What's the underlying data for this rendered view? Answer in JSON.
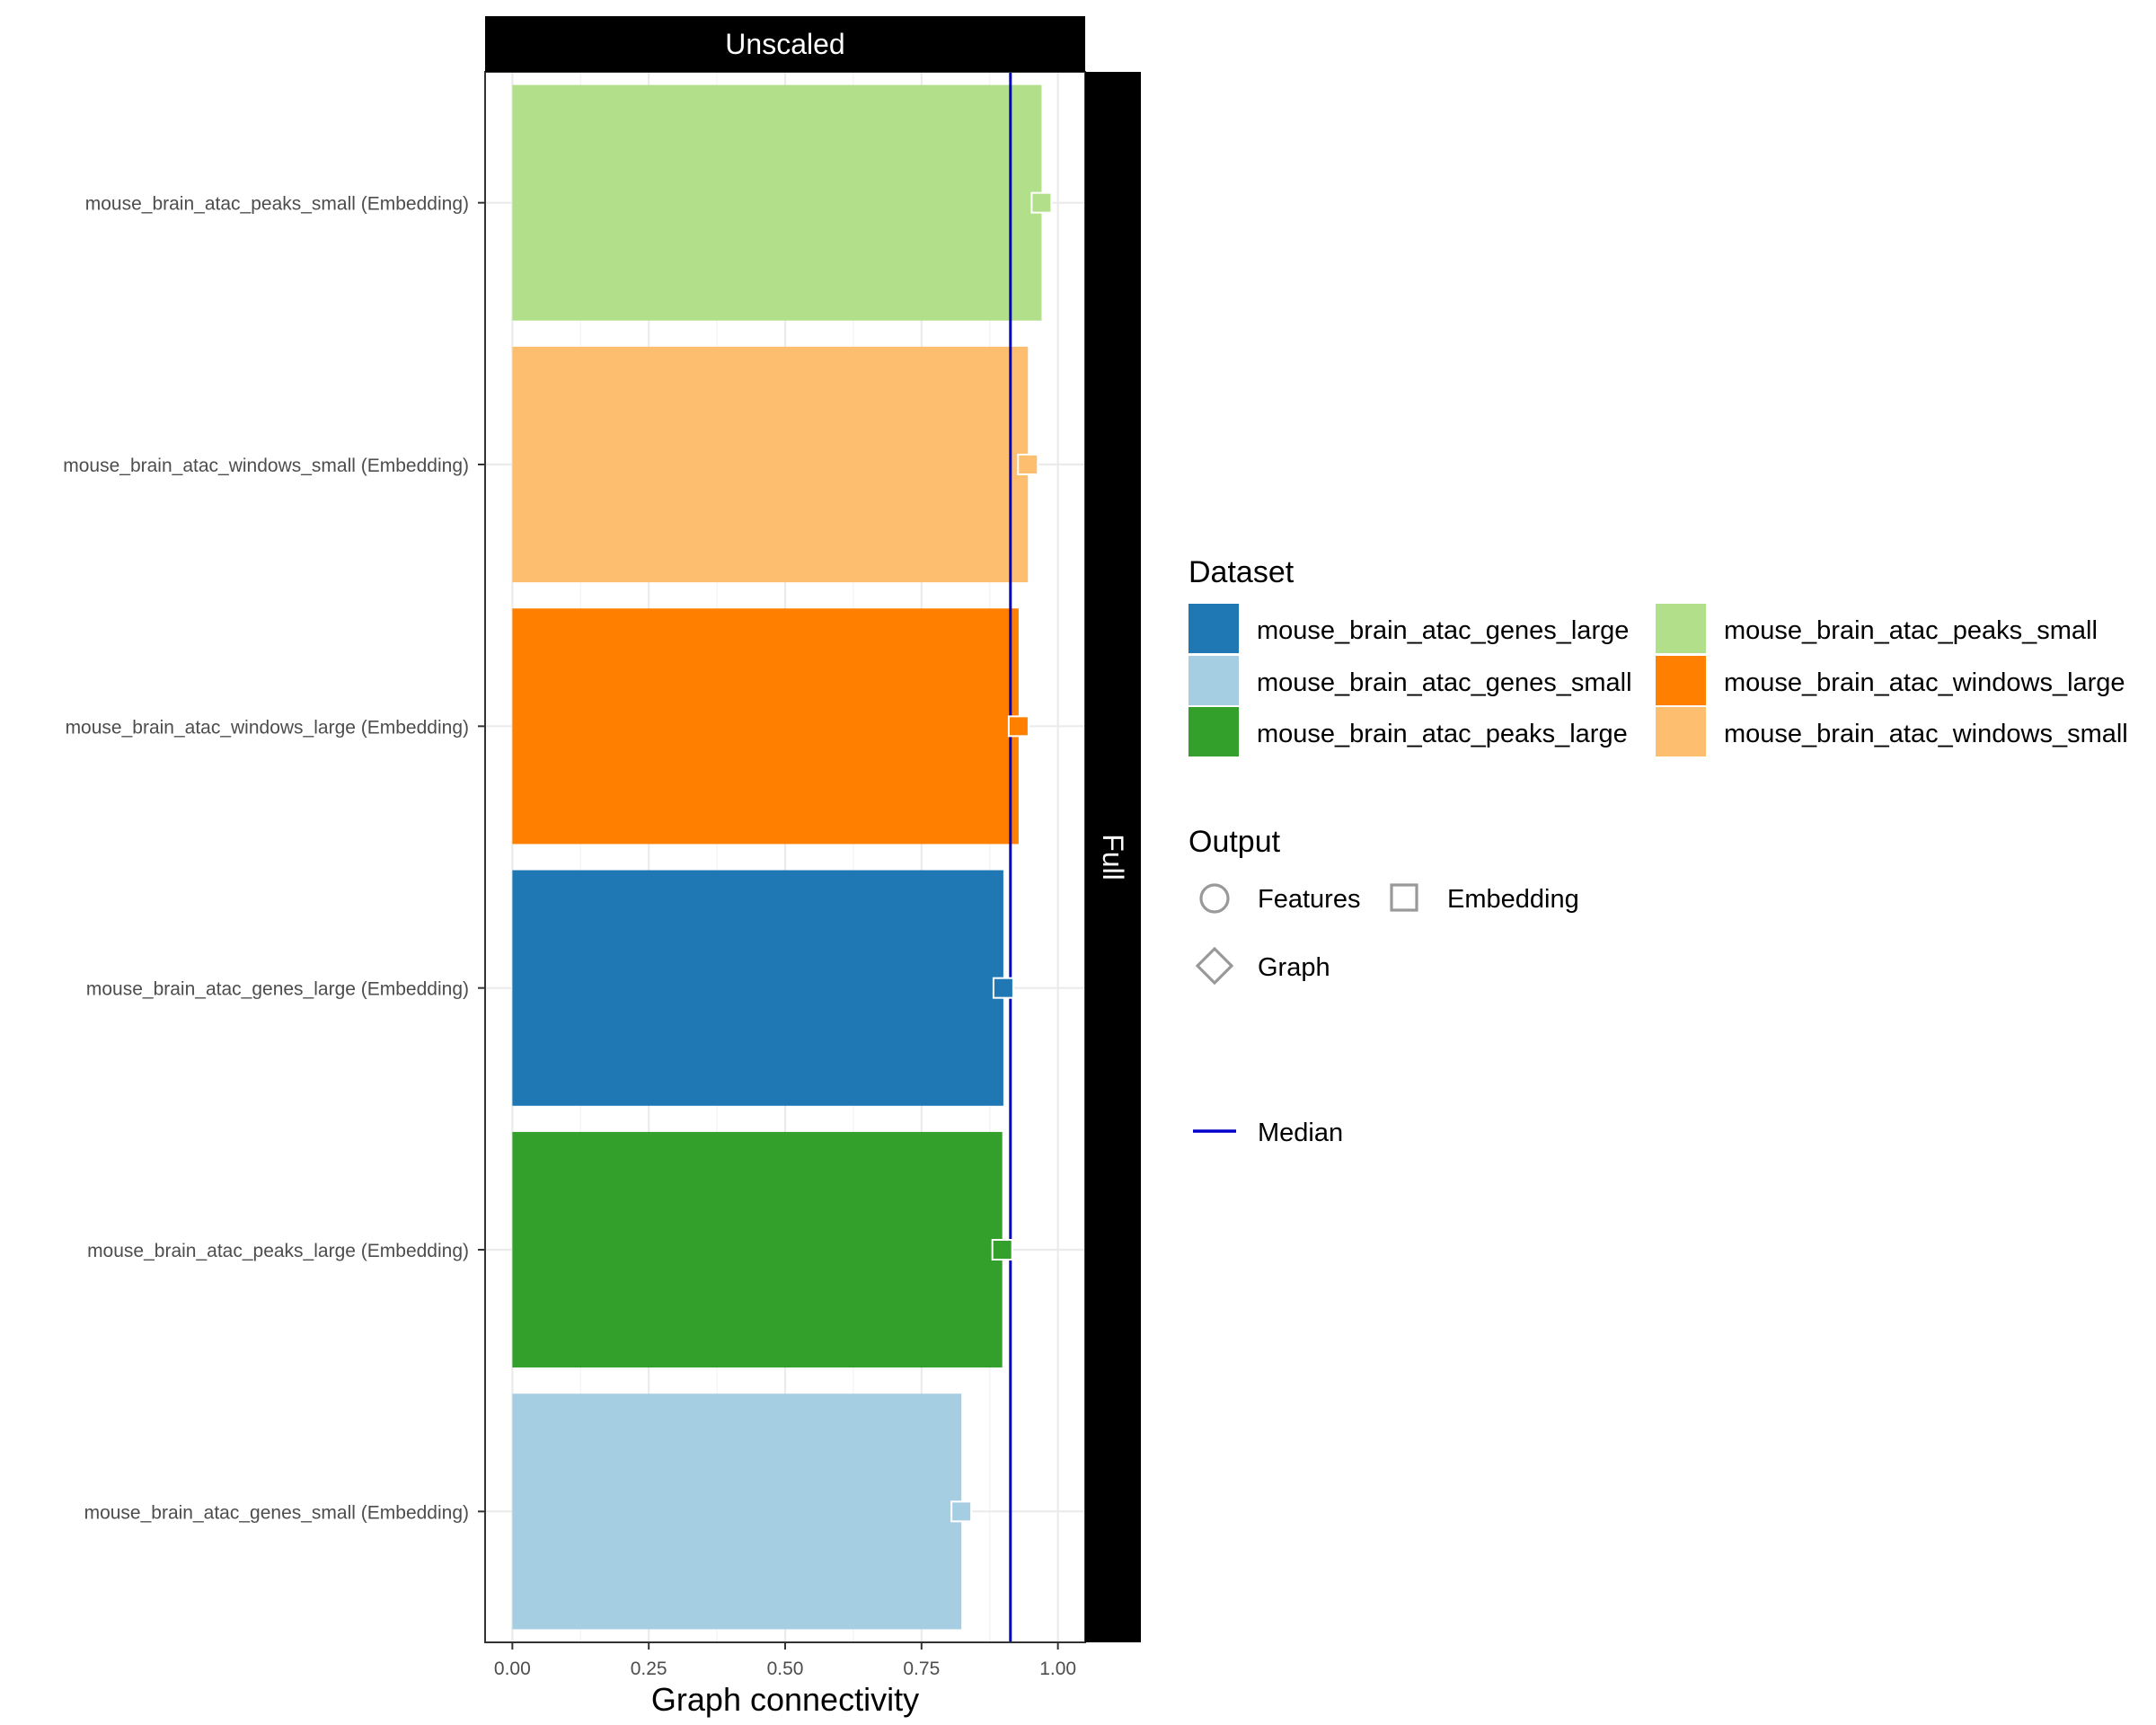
{
  "chart_data": {
    "type": "bar",
    "facet_top": "Unscaled",
    "facet_right": "Full",
    "xlabel": "Graph connectivity",
    "ylabel": "",
    "xlim": [
      -0.05,
      1.05
    ],
    "x_ticks": [
      "0.00",
      "0.25",
      "0.50",
      "0.75",
      "1.00"
    ],
    "x_tick_values": [
      0,
      0.25,
      0.5,
      0.75,
      1.0
    ],
    "categories": [
      "mouse_brain_atac_peaks_small (Embedding)",
      "mouse_brain_atac_windows_small (Embedding)",
      "mouse_brain_atac_windows_large (Embedding)",
      "mouse_brain_atac_genes_large (Embedding)",
      "mouse_brain_atac_peaks_large (Embedding)",
      "mouse_brain_atac_genes_small (Embedding)"
    ],
    "values": [
      0.97,
      0.945,
      0.928,
      0.9,
      0.898,
      0.823
    ],
    "bar_colors": [
      "#b2df8a",
      "#fdbf6f",
      "#ff7f00",
      "#1f78b4",
      "#33a02c",
      "#a6cee3"
    ],
    "median": 0.913,
    "median_color": "#0000cc",
    "grid": true,
    "legend_position": "right",
    "legend": {
      "dataset_title": "Dataset",
      "datasets": [
        {
          "name": "mouse_brain_atac_genes_large",
          "color": "#1f78b4"
        },
        {
          "name": "mouse_brain_atac_genes_small",
          "color": "#a6cee3"
        },
        {
          "name": "mouse_brain_atac_peaks_large",
          "color": "#33a02c"
        },
        {
          "name": "mouse_brain_atac_peaks_small",
          "color": "#b2df8a"
        },
        {
          "name": "mouse_brain_atac_windows_large",
          "color": "#ff7f00"
        },
        {
          "name": "mouse_brain_atac_windows_small",
          "color": "#fdbf6f"
        }
      ],
      "output_title": "Output",
      "outputs": [
        {
          "name": "Features",
          "shape": "circle-icon"
        },
        {
          "name": "Embedding",
          "shape": "square-icon"
        },
        {
          "name": "Graph",
          "shape": "diamond-icon"
        }
      ],
      "median_label": "Median"
    }
  }
}
